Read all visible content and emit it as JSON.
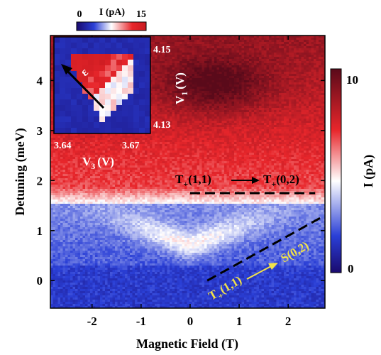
{
  "chart_data": {
    "type": "heatmap",
    "xlabel": "Magnetic Field (T)",
    "ylabel": "Detuning (meV)",
    "xlim": [
      -2.85,
      2.75
    ],
    "ylim": [
      -0.55,
      4.9
    ],
    "x_ticks": [
      -2,
      -1,
      0,
      1,
      2
    ],
    "x_tick_labels": [
      "-2",
      "-1",
      "0",
      "1",
      "2"
    ],
    "y_ticks": [
      0,
      1,
      2,
      3,
      4
    ],
    "y_tick_labels": [
      "0",
      "1",
      "2",
      "3",
      "4"
    ],
    "colorbar": {
      "label": "I (pA)",
      "min": 0,
      "max": 10,
      "tick_labels": [
        "0",
        "10"
      ],
      "colors": [
        "#1a0a6e",
        "#2a3fd6",
        "#ffffff",
        "#e8262b",
        "#5a0a1a"
      ]
    },
    "transition_lines": [
      {
        "label_from": "T",
        "label_from_sub": "+",
        "label_from_state": "(1,1)",
        "label_to": "T",
        "label_to_sub": "+",
        "label_to_state": "(0,2)",
        "style": "dashed",
        "color": "#000000",
        "points": [
          [
            0,
            1.75
          ],
          [
            2.55,
            1.75
          ]
        ]
      },
      {
        "label_from": "T",
        "label_from_sub": "+",
        "label_from_state": "(1,1)",
        "label_to": "S(0,2)",
        "style": "dashed",
        "color": "#000000",
        "points": [
          [
            0.35,
            0.0
          ],
          [
            2.65,
            1.25
          ]
        ]
      }
    ],
    "inset": {
      "title": "I (pA)",
      "colorbar_tick_labels": [
        "0",
        "15"
      ],
      "xlabel": "V",
      "xlabel_sub": "3",
      "xlabel_unit": "(V)",
      "ylabel": "V",
      "ylabel_sub": "1",
      "ylabel_unit": "(V)",
      "x_tick_labels": [
        "3.64",
        "3.67"
      ],
      "y_tick_labels": [
        "4.15",
        "4.13"
      ],
      "arrow_label": "ε"
    }
  }
}
